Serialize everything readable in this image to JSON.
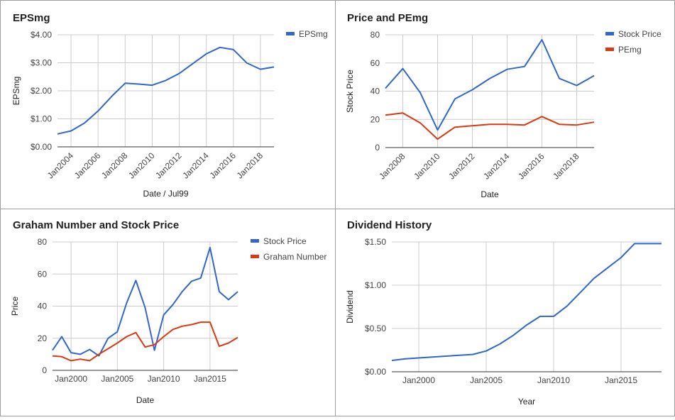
{
  "chart_data": [
    {
      "type": "line",
      "title": "EPSmg",
      "xlabel": "Date / Jul99",
      "ylabel": "EPSmg",
      "x": [
        2003,
        2004,
        2005,
        2006,
        2007,
        2008,
        2009,
        2010,
        2011,
        2012,
        2013,
        2014,
        2015,
        2016,
        2017,
        2018,
        2019
      ],
      "xlim": [
        2003,
        2019
      ],
      "xticks": [
        {
          "v": 2004,
          "label": "Jan2004"
        },
        {
          "v": 2006,
          "label": "Jan2006"
        },
        {
          "v": 2008,
          "label": "Jan2008"
        },
        {
          "v": 2010,
          "label": "Jan2010"
        },
        {
          "v": 2012,
          "label": "Jan2012"
        },
        {
          "v": 2014,
          "label": "Jan2014"
        },
        {
          "v": 2016,
          "label": "Jan2016"
        },
        {
          "v": 2018,
          "label": "Jan2018"
        }
      ],
      "xtick_rotate": true,
      "ylim": [
        0,
        4
      ],
      "yticks": [
        {
          "v": 0,
          "label": "$0.00"
        },
        {
          "v": 1,
          "label": "$1.00"
        },
        {
          "v": 2,
          "label": "$2.00"
        },
        {
          "v": 3,
          "label": "$3.00"
        },
        {
          "v": 4,
          "label": "$4.00"
        }
      ],
      "grid": true,
      "legend_position": "right",
      "series": [
        {
          "name": "EPSmg",
          "color": "#3366cc",
          "values": [
            0.46,
            0.57,
            0.85,
            1.28,
            1.8,
            2.27,
            2.24,
            2.2,
            2.37,
            2.62,
            2.97,
            3.32,
            3.55,
            3.47,
            2.99,
            2.77,
            2.85
          ]
        }
      ]
    },
    {
      "type": "line",
      "title": "Price and PEmg",
      "xlabel": "Date",
      "ylabel": "Stock Price",
      "x": [
        2007,
        2008,
        2009,
        2010,
        2011,
        2012,
        2013,
        2014,
        2015,
        2016,
        2017,
        2018,
        2019
      ],
      "xlim": [
        2007,
        2019
      ],
      "xticks": [
        {
          "v": 2008,
          "label": "Jan2008"
        },
        {
          "v": 2010,
          "label": "Jan2010"
        },
        {
          "v": 2012,
          "label": "Jan2012"
        },
        {
          "v": 2014,
          "label": "Jan2014"
        },
        {
          "v": 2016,
          "label": "Jan2016"
        },
        {
          "v": 2018,
          "label": "Jan2018"
        }
      ],
      "xtick_rotate": true,
      "ylim": [
        0,
        80
      ],
      "yticks": [
        {
          "v": 0,
          "label": "0"
        },
        {
          "v": 20,
          "label": "20"
        },
        {
          "v": 40,
          "label": "40"
        },
        {
          "v": 60,
          "label": "60"
        },
        {
          "v": 80,
          "label": "80"
        }
      ],
      "grid": true,
      "legend_position": "right",
      "series": [
        {
          "name": "Stock Price",
          "color": "#3366cc",
          "values": [
            42,
            56,
            39,
            12.5,
            34.5,
            41,
            49,
            55.5,
            57.5,
            76.5,
            49,
            44,
            51
          ]
        },
        {
          "name": "PEmg",
          "color": "#dc3912",
          "values": [
            23,
            24.5,
            17.5,
            6,
            14.5,
            15.5,
            16.5,
            16.5,
            16,
            22,
            16.5,
            16,
            18
          ]
        }
      ]
    },
    {
      "type": "line",
      "title": "Graham Number and Stock Price",
      "xlabel": "Date",
      "ylabel": "Price",
      "x": [
        1998,
        1999,
        2000,
        2001,
        2002,
        2003,
        2004,
        2005,
        2006,
        2007,
        2008,
        2009,
        2010,
        2011,
        2012,
        2013,
        2014,
        2015,
        2016,
        2017,
        2018
      ],
      "xlim": [
        1998,
        2018
      ],
      "xticks": [
        {
          "v": 2000,
          "label": "Jan2000"
        },
        {
          "v": 2005,
          "label": "Jan2005"
        },
        {
          "v": 2010,
          "label": "Jan2010"
        },
        {
          "v": 2015,
          "label": "Jan2015"
        }
      ],
      "xtick_rotate": false,
      "ylim": [
        0,
        80
      ],
      "yticks": [
        {
          "v": 0,
          "label": "0"
        },
        {
          "v": 20,
          "label": "20"
        },
        {
          "v": 40,
          "label": "40"
        },
        {
          "v": 60,
          "label": "60"
        },
        {
          "v": 80,
          "label": "80"
        }
      ],
      "grid": true,
      "legend_position": "right",
      "series": [
        {
          "name": "Stock Price",
          "color": "#3366cc",
          "values": [
            12.5,
            21,
            11,
            10,
            13,
            9,
            20,
            24,
            42,
            56,
            39,
            12.5,
            34.5,
            41,
            49,
            55.5,
            57.5,
            76.5,
            49,
            44,
            49
          ]
        },
        {
          "name": "Graham Number",
          "color": "#dc3912",
          "values": [
            9,
            8.5,
            6,
            7,
            6,
            10,
            13.5,
            17,
            21,
            23.5,
            14.5,
            16,
            21,
            25.5,
            27.5,
            28.5,
            30,
            30,
            15,
            17,
            20.5
          ]
        }
      ]
    },
    {
      "type": "line",
      "title": "Dividend History",
      "xlabel": "Year",
      "ylabel": "Dividend",
      "x": [
        1998,
        1999,
        2000,
        2001,
        2002,
        2003,
        2004,
        2005,
        2006,
        2007,
        2008,
        2009,
        2010,
        2011,
        2012,
        2013,
        2014,
        2015,
        2016,
        2017,
        2018
      ],
      "xlim": [
        1998,
        2018
      ],
      "xticks": [
        {
          "v": 2000,
          "label": "Jan2000"
        },
        {
          "v": 2005,
          "label": "Jan2005"
        },
        {
          "v": 2010,
          "label": "Jan2010"
        },
        {
          "v": 2015,
          "label": "Jan2015"
        }
      ],
      "xtick_rotate": false,
      "ylim": [
        0,
        1.5
      ],
      "yticks": [
        {
          "v": 0,
          "label": "$0.00"
        },
        {
          "v": 0.5,
          "label": "$0.50"
        },
        {
          "v": 1,
          "label": "$1.00"
        },
        {
          "v": 1.5,
          "label": "$1.50"
        }
      ],
      "grid": true,
      "legend_position": "none",
      "series": [
        {
          "name": "",
          "color": "#3366cc",
          "values": [
            0.13,
            0.15,
            0.16,
            0.17,
            0.18,
            0.19,
            0.2,
            0.24,
            0.32,
            0.42,
            0.54,
            0.64,
            0.64,
            0.76,
            0.92,
            1.08,
            1.2,
            1.32,
            1.48,
            1.48,
            1.48
          ]
        }
      ]
    }
  ]
}
